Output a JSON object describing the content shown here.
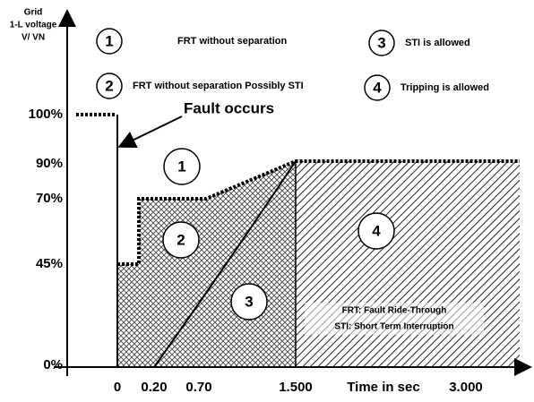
{
  "y_axis": {
    "label": [
      "Grid",
      "1-L voltage",
      "V/ VN"
    ],
    "ticks": [
      "100%",
      "90%",
      "70%",
      "45%",
      "0%"
    ]
  },
  "x_axis": {
    "ticks": [
      "0",
      "0.20",
      "0.70",
      "1.500",
      "3.000"
    ],
    "label": "Time in sec"
  },
  "legend": [
    {
      "number": "1",
      "text": "FRT without separation"
    },
    {
      "number": "2",
      "text": "FRT without separation Possibly STI"
    },
    {
      "number": "3",
      "text": "STI is allowed"
    },
    {
      "number": "4",
      "text": "Tripping is allowed"
    }
  ],
  "annotation": "Fault occurs",
  "regions": [
    "1",
    "2",
    "3",
    "4"
  ],
  "notes": [
    "FRT: Fault Ride-Through",
    "STI: Short Term Interruption"
  ]
}
